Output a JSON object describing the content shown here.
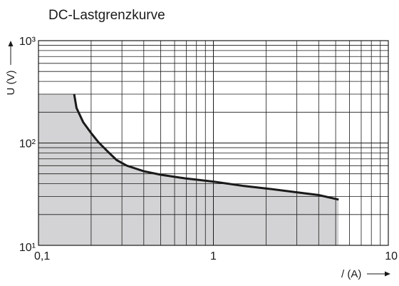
{
  "chart_data": {
    "type": "line",
    "title": "DC-Lastgrenzkurve",
    "xlabel": "/ (A)",
    "ylabel": "U (V)",
    "x_scale": "log",
    "y_scale": "log",
    "xlim": [
      0.1,
      10
    ],
    "ylim": [
      10,
      1000
    ],
    "x_ticks": [
      {
        "value": 0.1,
        "label": "0,1"
      },
      {
        "value": 1,
        "label": "1"
      },
      {
        "value": 10,
        "label": "10"
      }
    ],
    "y_ticks": [
      {
        "value": 10,
        "label": "10¹"
      },
      {
        "value": 100,
        "label": "10²"
      },
      {
        "value": 1000,
        "label": "10³"
      }
    ],
    "grid": true,
    "series": [
      {
        "x": [
          0.16,
          0.165,
          0.18,
          0.2,
          0.22,
          0.25,
          0.28,
          0.32,
          0.4,
          0.5,
          0.7,
          1.0,
          1.5,
          2.0,
          3.0,
          4.0,
          5.2
        ],
        "y": [
          300,
          220,
          160,
          125,
          102,
          82,
          68,
          60,
          53,
          49,
          45,
          42,
          38,
          36,
          33,
          31,
          28
        ]
      }
    ],
    "shaded_area": {
      "description_hidden": "",
      "fill": "#d3d3d5",
      "x_start": 0.1,
      "y_top": 300
    }
  }
}
